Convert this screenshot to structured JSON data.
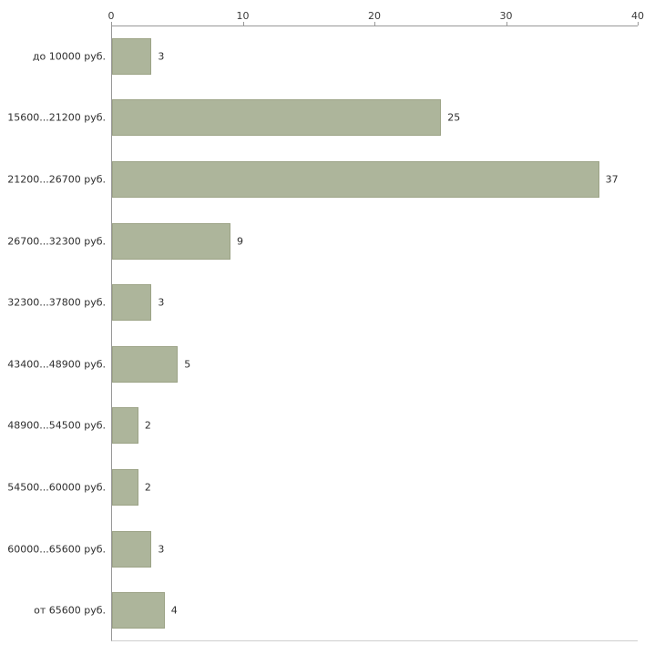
{
  "chart_data": {
    "type": "bar",
    "orientation": "horizontal",
    "title": "",
    "xlabel": "",
    "ylabel": "",
    "grid": false,
    "legend": false,
    "xlim": [
      0,
      40
    ],
    "xticks": [
      0,
      10,
      20,
      30,
      40
    ],
    "categories": [
      "до 10000 руб.",
      "15600...21200 руб.",
      "21200...26700 руб.",
      "26700...32300 руб.",
      "32300...37800 руб.",
      "43400...48900 руб.",
      "48900...54500 руб.",
      "54500...60000 руб.",
      "60000...65600 руб.",
      "от 65600 руб."
    ],
    "values": [
      3,
      25,
      37,
      9,
      3,
      5,
      2,
      2,
      3,
      4
    ],
    "bar_color": "#adb59b",
    "bar_border_color": "#9ca386",
    "axis_color": "#989898",
    "background_color": "#ffffff"
  },
  "layout_hints": {
    "x_axis_position": "top",
    "value_labels": "right-of-bar",
    "category_labels": "left-of-plot"
  }
}
